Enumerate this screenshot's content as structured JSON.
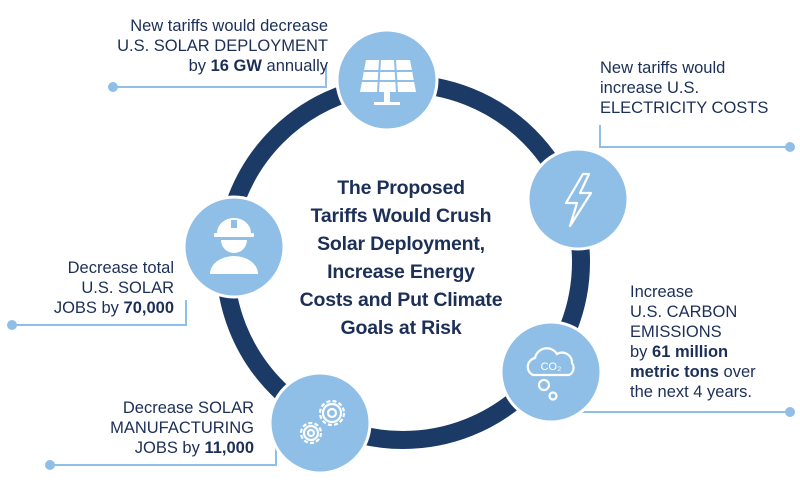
{
  "title_lines": [
    "The Proposed",
    "Tariffs Would Crush",
    "Solar Deployment,",
    "Increase Energy",
    "Costs and Put Climate",
    "Goals at Risk"
  ],
  "colors": {
    "ring": "#1c3a66",
    "circle": "#8fbfe6",
    "leader": "#8fbfe6",
    "text": "#1c2f57",
    "icon": "#ffffff"
  },
  "nodes": [
    {
      "icon": "solar-panel-icon",
      "lines": [
        {
          "pre": "New tariffs would decrease"
        },
        {
          "pre": "U.S. SOLAR DEPLOYMENT"
        },
        {
          "pre": "by ",
          "bold": "16 GW",
          "post": " annually"
        }
      ]
    },
    {
      "icon": "lightning-bolt-icon",
      "lines": [
        {
          "pre": "New tariffs would"
        },
        {
          "pre": "increase U.S."
        },
        {
          "pre": "ELECTRICITY COSTS"
        }
      ]
    },
    {
      "icon": "co2-cloud-icon",
      "co2_text": "CO₂",
      "lines": [
        {
          "pre": "Increase"
        },
        {
          "pre": "U.S. CARBON"
        },
        {
          "pre": "EMISSIONS"
        },
        {
          "pre": "by ",
          "bold": "61 million"
        },
        {
          "bold": "metric tons",
          "post": " over"
        },
        {
          "pre": "the next 4 years."
        }
      ]
    },
    {
      "icon": "gears-icon",
      "lines": [
        {
          "pre": "Decrease SOLAR"
        },
        {
          "pre": "MANUFACTURING"
        },
        {
          "pre": "JOBS by ",
          "bold": "11,000"
        }
      ]
    },
    {
      "icon": "hard-hat-worker-icon",
      "lines": [
        {
          "pre": "Decrease total"
        },
        {
          "pre": "U.S. SOLAR"
        },
        {
          "pre": "JOBS by ",
          "bold": "70,000"
        }
      ]
    }
  ]
}
